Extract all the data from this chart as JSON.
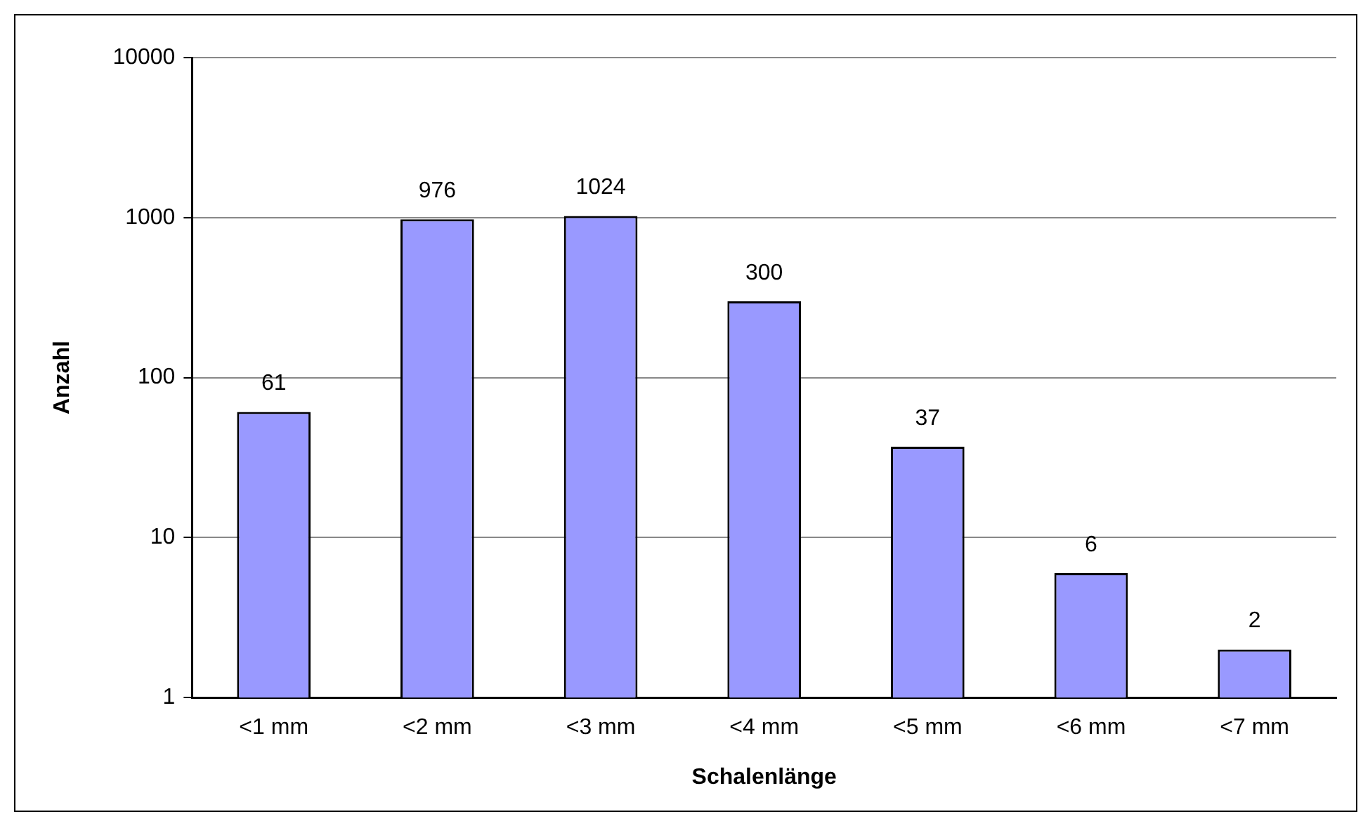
{
  "chart_data": {
    "type": "bar",
    "xlabel": "Schalenlänge",
    "ylabel": "Anzahl",
    "categories": [
      "<1 mm",
      "<2 mm",
      "<3 mm",
      "<4 mm",
      "<5 mm",
      "<6 mm",
      "<7 mm"
    ],
    "values": [
      61,
      976,
      1024,
      300,
      37,
      6,
      2
    ],
    "color": "#9999ff",
    "log": true,
    "ylim": [
      1,
      10000
    ],
    "yticks": [
      1,
      10,
      100,
      1000,
      10000
    ],
    "grid": "y",
    "legend": false,
    "data_labels": true
  }
}
